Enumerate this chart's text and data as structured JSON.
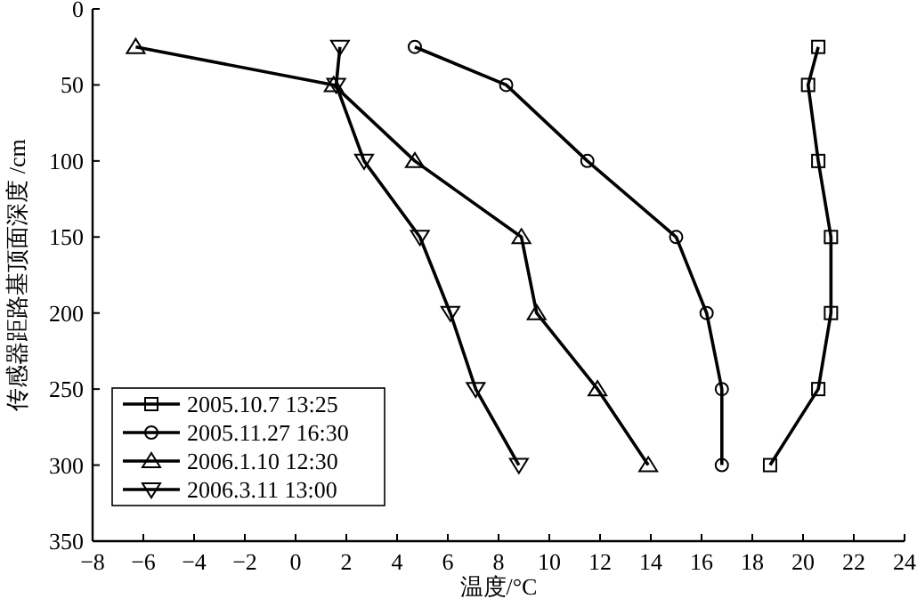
{
  "chart_data": {
    "type": "line",
    "xlabel": "温度/°C",
    "ylabel": "传感器距路基顶面深度 /cm",
    "xlim": [
      -8,
      24
    ],
    "xticks": [
      -8,
      -6,
      -4,
      -2,
      0,
      2,
      4,
      6,
      8,
      10,
      12,
      14,
      16,
      18,
      20,
      22,
      24
    ],
    "ylim": [
      350,
      0
    ],
    "yticks": [
      0,
      50,
      100,
      150,
      200,
      250,
      300,
      350
    ],
    "grid": false,
    "legend": "bottom left",
    "line_style": "solid",
    "series": [
      {
        "name": "2005.10.7 13:25",
        "color": "#000000",
        "marker": "square",
        "x": [
          20.6,
          20.2,
          20.6,
          21.1,
          21.1,
          20.6,
          18.7
        ],
        "values": [
          25,
          50,
          100,
          150,
          200,
          250,
          300
        ]
      },
      {
        "name": "2005.11.27 16:30",
        "color": "#000000",
        "marker": "circle",
        "x": [
          4.7,
          8.3,
          11.5,
          15.0,
          16.2,
          16.8,
          16.8
        ],
        "values": [
          25,
          50,
          100,
          150,
          200,
          250,
          300
        ]
      },
      {
        "name": "2006.1.10 12:30",
        "color": "#000000",
        "marker": "triangle",
        "x": [
          -6.3,
          1.5,
          4.7,
          8.9,
          9.5,
          11.9,
          13.9
        ],
        "values": [
          25,
          50,
          100,
          150,
          200,
          250,
          300
        ]
      },
      {
        "name": "2006.3.11 13:00",
        "color": "#000000",
        "marker": "triangle-down",
        "x": [
          1.75,
          1.6,
          2.7,
          4.9,
          6.1,
          7.1,
          8.8
        ],
        "values": [
          25,
          50,
          100,
          150,
          200,
          250,
          300
        ]
      }
    ]
  }
}
